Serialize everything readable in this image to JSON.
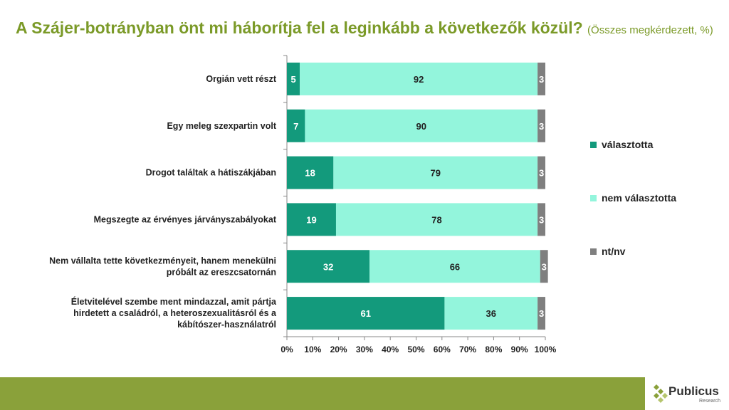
{
  "title": {
    "main": "A Szájer-botrányban önt mi háborítja fel a leginkább a következők közül?",
    "sub": "(Összes megkérdezett, %)"
  },
  "chart_data": {
    "type": "bar",
    "stacked": true,
    "orientation": "horizontal",
    "percent_stacked": true,
    "categories": [
      "Orgián vett részt",
      "Egy meleg szexpartin volt",
      "Drogot találtak a hátiszákjában",
      "Megszegte az érvényes járványszabályokat",
      "Nem vállalta tette következményeit, hanem menekülni próbált az ereszcsatornán",
      "Életvitelével szembe ment mindazzal, amit pártja hirdetett a családról, a heteroszexualitásról és a kábítószer-használatról"
    ],
    "category_lines": [
      [
        "Orgián vett részt"
      ],
      [
        "Egy meleg szexpartin volt"
      ],
      [
        "Drogot találtak a hátiszákjában"
      ],
      [
        "Megszegte az érvényes járványszabályokat"
      ],
      [
        "Nem vállalta tette következményeit, hanem menekülni",
        "próbált az ereszcsatornán"
      ],
      [
        "Életvitelével szembe ment mindazzal, amit pártja",
        "hirdetett a családról, a heteroszexualitásról és a",
        "kábítószer-használatról"
      ]
    ],
    "series": [
      {
        "name": "választotta",
        "color": "#139a7c",
        "label_color": "#ffffff",
        "values": [
          5,
          7,
          18,
          19,
          32,
          61
        ]
      },
      {
        "name": "nem választotta",
        "color": "#93f5dc",
        "label_color": "#222222",
        "values": [
          92,
          90,
          79,
          78,
          66,
          36
        ]
      },
      {
        "name": "nt/nv",
        "color": "#7f7f7f",
        "label_color": "#ffffff",
        "values": [
          3,
          3,
          3,
          3,
          3,
          3
        ]
      }
    ],
    "x_ticks": [
      "0%",
      "10%",
      "20%",
      "30%",
      "40%",
      "50%",
      "60%",
      "70%",
      "80%",
      "90%",
      "100%"
    ],
    "xlim": [
      0,
      100
    ],
    "legend_position": "right",
    "grid": false
  },
  "logo": {
    "name": "Publicus",
    "sub": "Research"
  }
}
